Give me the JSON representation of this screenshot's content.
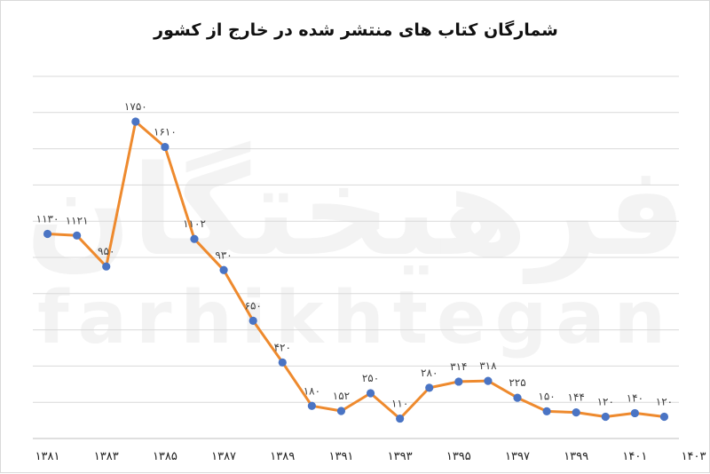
{
  "chart_data": {
    "type": "line",
    "title": "شمارگان کتاب های منتشر شده در خارج از کشور",
    "x": [
      "۱۳۸۱",
      "۱۳۸۲",
      "۱۳۸۳",
      "۱۳۸۴",
      "۱۳۸۵",
      "۱۳۸۶",
      "۱۳۸۷",
      "۱۳۸۸",
      "۱۳۸۹",
      "۱۳۹۰",
      "۱۳۹۱",
      "۱۳۹۲",
      "۱۳۹۳",
      "۱۳۹۴",
      "۱۳۹۵",
      "۱۳۹۶",
      "۱۳۹۷",
      "۱۳۹۸",
      "۱۳۹۹",
      "۱۴۰۰",
      "۱۴۰۱",
      "۱۴۰۲"
    ],
    "tick_labels": [
      "۱۳۸۱",
      "۱۳۸۳",
      "۱۳۸۵",
      "۱۳۸۷",
      "۱۳۸۹",
      "۱۳۹۱",
      "۱۳۹۳",
      "۱۳۹۵",
      "۱۳۹۷",
      "۱۳۹۹",
      "۱۴۰۱",
      "۱۴۰۳"
    ],
    "series": [
      {
        "values": [
          1130,
          1121,
          950,
          1750,
          1610,
          1102,
          930,
          650,
          420,
          180,
          152,
          250,
          110,
          280,
          314,
          318,
          225,
          150,
          144,
          120,
          140,
          120
        ],
        "data_labels": [
          "۱۱۳۰",
          "۱۱۲۱",
          "۹۵۰",
          "۱۷۵۰",
          "۱۶۱۰",
          "۱۱۰۲",
          "۹۳۰",
          "۶۵۰",
          "۴۲۰",
          "۱۸۰",
          "۱۵۲",
          "۲۵۰",
          "۱۱۰",
          "۲۸۰",
          "۳۱۴",
          "۳۱۸",
          "۲۲۵",
          "۱۵۰",
          "۱۴۴",
          "۱۲۰",
          "۱۴۰",
          "۱۲۰"
        ]
      }
    ],
    "ylim": [
      0,
      2000
    ],
    "y_gridlines": 10,
    "grid": true,
    "legend": "none",
    "colors": {
      "line": "#ee8a2e",
      "marker": "#4a74c4",
      "grid": "#d9d9d9"
    }
  },
  "watermark": {
    "text_fa": "فرهیختگان",
    "text_en": "farhikhtegan"
  }
}
